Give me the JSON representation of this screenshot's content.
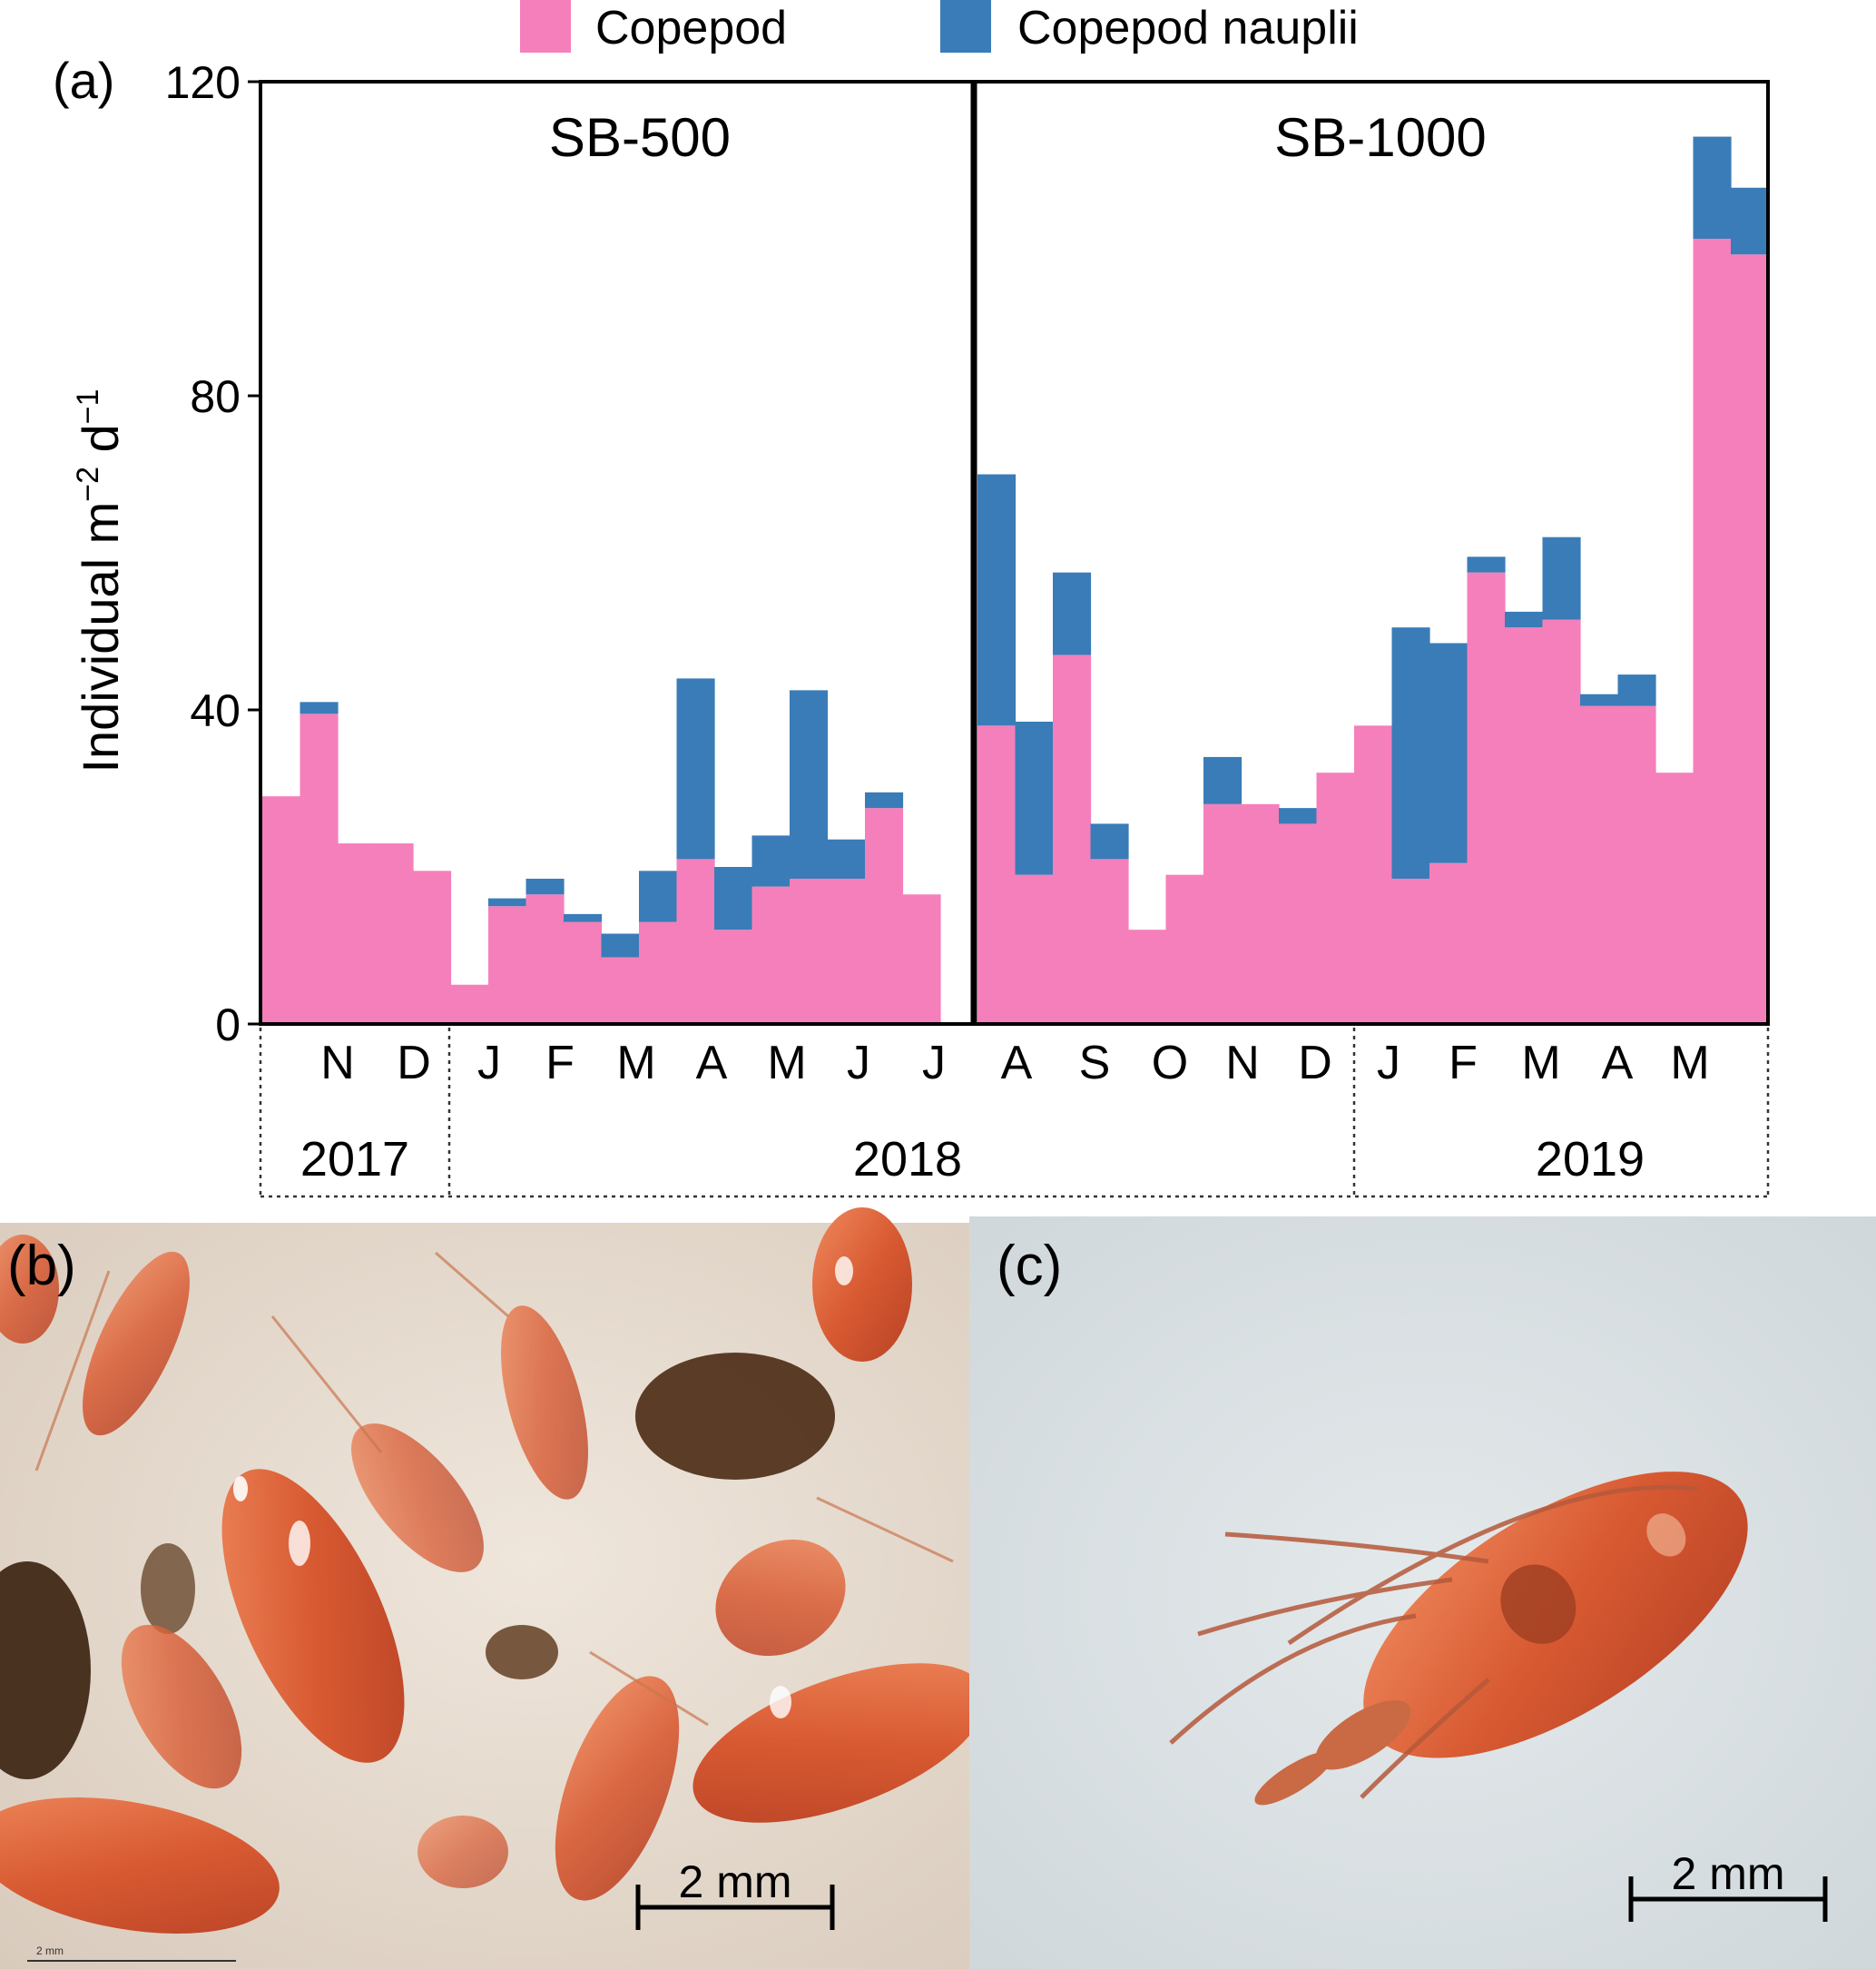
{
  "panel_labels": {
    "a": "(a)",
    "b": "(b)",
    "c": "(c)"
  },
  "legend": {
    "copepod": "Copepod",
    "nauplii": "Copepod nauplii"
  },
  "colors": {
    "copepod": "#f57fbb",
    "nauplii": "#3a7cb7",
    "axis": "#000000"
  },
  "chart_data": {
    "type": "bar",
    "stacked": true,
    "ylabel": "Individual m⁻² d⁻¹",
    "ylim": [
      0,
      120
    ],
    "yticks": [
      "0",
      "40",
      "80",
      "120"
    ],
    "sections": [
      "SB-500",
      "SB-1000"
    ],
    "section_split_index": 18,
    "series": [
      {
        "name": "Copepod",
        "values": [
          29,
          39.5,
          23,
          23,
          19.5,
          5,
          15,
          16.5,
          13,
          8.5,
          13,
          21,
          12,
          17.5,
          18.5,
          18.5,
          27.5,
          16.5,
          38,
          19,
          47,
          21,
          12,
          19,
          28,
          28,
          25.5,
          32,
          38,
          18.5,
          20.5,
          57.5,
          50.5,
          51.5,
          40.5,
          40.5,
          32,
          100,
          98
        ]
      },
      {
        "name": "Copepod nauplii",
        "values": [
          0,
          1.5,
          0,
          0,
          0,
          0,
          1,
          2,
          1,
          3,
          6.5,
          23,
          8,
          6.5,
          24,
          5,
          2,
          0,
          32,
          19.5,
          10.5,
          4.5,
          0,
          0,
          6,
          0,
          2,
          0,
          0,
          32,
          28,
          2,
          2,
          10.5,
          1.5,
          4,
          0,
          13,
          8.5
        ]
      }
    ],
    "month_labels": [
      "N",
      "D",
      "J",
      "F",
      "M",
      "A",
      "M",
      "J",
      "J",
      "A",
      "S",
      "O",
      "N",
      "D",
      "J",
      "F",
      "M",
      "A",
      "M"
    ],
    "year_labels": [
      "2017",
      "2018",
      "2019"
    ]
  },
  "scale_bars": {
    "b": "2 mm",
    "c": "2 mm"
  },
  "micro_scale_text": "2 mm"
}
